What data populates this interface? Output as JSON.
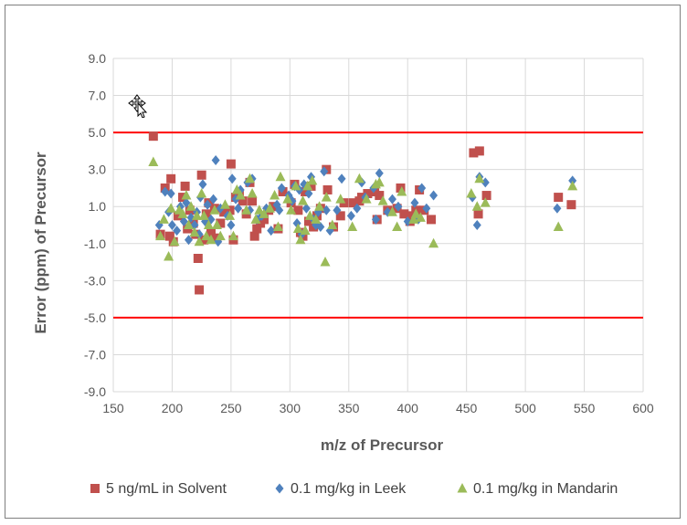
{
  "chart_data": {
    "type": "scatter",
    "xlabel": "m/z of Precursor",
    "ylabel": "Error (ppm) of Precursor",
    "xlim": [
      150,
      600
    ],
    "ylim": [
      -9,
      9
    ],
    "x_ticks": [
      "150",
      "200",
      "250",
      "300",
      "350",
      "400",
      "450",
      "500",
      "550",
      "600"
    ],
    "y_ticks": [
      "9.0",
      "7.0",
      "5.0",
      "3.0",
      "1.0",
      "-1.0",
      "-3.0",
      "-5.0",
      "-7.0",
      "-9.0"
    ],
    "grid": true,
    "legend_position": "bottom",
    "reference_lines": [
      {
        "y": 5.0,
        "color": "#ff0000"
      },
      {
        "y": -5.0,
        "color": "#ff0000"
      }
    ],
    "series": [
      {
        "name": "5 ng/mL in Solvent",
        "marker": "square",
        "color": "#c0504d",
        "points": [
          [
            184,
            4.8
          ],
          [
            190,
            -0.5
          ],
          [
            194,
            2.0
          ],
          [
            198,
            -0.6
          ],
          [
            199,
            2.5
          ],
          [
            201,
            -0.9
          ],
          [
            205,
            0.5
          ],
          [
            209,
            1.5
          ],
          [
            211,
            2.1
          ],
          [
            213,
            -0.2
          ],
          [
            215,
            0.8
          ],
          [
            218,
            0.1
          ],
          [
            220,
            -0.5
          ],
          [
            222,
            -1.8
          ],
          [
            223,
            -3.5
          ],
          [
            225,
            2.7
          ],
          [
            227,
            -0.8
          ],
          [
            229,
            0.6
          ],
          [
            231,
            1.2
          ],
          [
            233,
            -0.4
          ],
          [
            236,
            0.9
          ],
          [
            238,
            -0.7
          ],
          [
            241,
            0.1
          ],
          [
            244,
            0.7
          ],
          [
            249,
            0.8
          ],
          [
            250,
            3.3
          ],
          [
            252,
            -0.8
          ],
          [
            254,
            1.5
          ],
          [
            257,
            1.7
          ],
          [
            260,
            1.3
          ],
          [
            263,
            0.6
          ],
          [
            266,
            2.3
          ],
          [
            268,
            1.3
          ],
          [
            270,
            -0.6
          ],
          [
            272,
            -0.2
          ],
          [
            275,
            0.1
          ],
          [
            278,
            0.3
          ],
          [
            282,
            0.8
          ],
          [
            286,
            1.0
          ],
          [
            290,
            -0.2
          ],
          [
            294,
            1.8
          ],
          [
            301,
            1.2
          ],
          [
            304,
            2.2
          ],
          [
            307,
            0.8
          ],
          [
            309,
            -0.4
          ],
          [
            311,
            -0.6
          ],
          [
            313,
            1.8
          ],
          [
            316,
            0.2
          ],
          [
            318,
            2.1
          ],
          [
            320,
            -0.1
          ],
          [
            323,
            0.5
          ],
          [
            326,
            0.9
          ],
          [
            331,
            3.0
          ],
          [
            332,
            1.9
          ],
          [
            337,
            -0.1
          ],
          [
            343,
            0.5
          ],
          [
            346,
            1.2
          ],
          [
            354,
            1.2
          ],
          [
            359,
            1.3
          ],
          [
            361,
            1.5
          ],
          [
            366,
            1.7
          ],
          [
            372,
            1.8
          ],
          [
            374,
            0.3
          ],
          [
            376,
            1.6
          ],
          [
            383,
            0.8
          ],
          [
            391,
            0.9
          ],
          [
            394,
            2.0
          ],
          [
            397,
            0.6
          ],
          [
            402,
            0.2
          ],
          [
            404,
            0.5
          ],
          [
            407,
            0.8
          ],
          [
            410,
            1.9
          ],
          [
            414,
            0.8
          ],
          [
            420,
            0.3
          ],
          [
            456,
            3.9
          ],
          [
            460,
            0.6
          ],
          [
            461,
            4.0
          ],
          [
            467,
            1.6
          ],
          [
            528,
            1.5
          ],
          [
            539,
            1.1
          ]
        ]
      },
      {
        "name": "0.1 mg/kg in Leek",
        "marker": "diamond",
        "color": "#4f81bd",
        "points": [
          [
            189,
            0.0
          ],
          [
            194,
            1.8
          ],
          [
            197,
            0.7
          ],
          [
            199,
            1.7
          ],
          [
            200,
            0.0
          ],
          [
            204,
            -0.3
          ],
          [
            207,
            1.0
          ],
          [
            210,
            0.2
          ],
          [
            212,
            1.2
          ],
          [
            214,
            -0.8
          ],
          [
            216,
            0.4
          ],
          [
            219,
            0.0
          ],
          [
            221,
            0.7
          ],
          [
            223,
            -0.5
          ],
          [
            224,
            1.5
          ],
          [
            226,
            2.2
          ],
          [
            228,
            0.2
          ],
          [
            230,
            1.1
          ],
          [
            233,
            0.3
          ],
          [
            235,
            1.4
          ],
          [
            237,
            3.5
          ],
          [
            239,
            -0.9
          ],
          [
            241,
            0.9
          ],
          [
            247,
            0.5
          ],
          [
            250,
            0.0
          ],
          [
            251,
            2.5
          ],
          [
            254,
            1.4
          ],
          [
            256,
            0.9
          ],
          [
            258,
            1.9
          ],
          [
            264,
            2.3
          ],
          [
            266,
            0.8
          ],
          [
            268,
            2.5
          ],
          [
            272,
            0.3
          ],
          [
            276,
            0.5
          ],
          [
            280,
            0.9
          ],
          [
            284,
            -0.3
          ],
          [
            289,
            1.1
          ],
          [
            291,
            0.8
          ],
          [
            293,
            2.0
          ],
          [
            299,
            1.6
          ],
          [
            302,
            1.3
          ],
          [
            304,
            2.1
          ],
          [
            306,
            0.1
          ],
          [
            308,
            1.9
          ],
          [
            310,
            -0.5
          ],
          [
            312,
            2.2
          ],
          [
            314,
            0.9
          ],
          [
            316,
            1.7
          ],
          [
            318,
            2.6
          ],
          [
            320,
            0.3
          ],
          [
            322,
            0.0
          ],
          [
            324,
            0.7
          ],
          [
            326,
            -0.1
          ],
          [
            329,
            2.9
          ],
          [
            331,
            0.8
          ],
          [
            334,
            -0.3
          ],
          [
            340,
            0.8
          ],
          [
            344,
            2.5
          ],
          [
            352,
            0.5
          ],
          [
            357,
            0.9
          ],
          [
            361,
            2.3
          ],
          [
            364,
            1.5
          ],
          [
            371,
            2.0
          ],
          [
            373,
            0.3
          ],
          [
            376,
            2.8
          ],
          [
            383,
            0.7
          ],
          [
            387,
            1.4
          ],
          [
            392,
            1.0
          ],
          [
            400,
            0.2
          ],
          [
            406,
            1.2
          ],
          [
            409,
            0.3
          ],
          [
            412,
            2.0
          ],
          [
            416,
            0.9
          ],
          [
            422,
            1.6
          ],
          [
            455,
            1.5
          ],
          [
            459,
            0.0
          ],
          [
            461,
            2.6
          ],
          [
            466,
            2.3
          ],
          [
            527,
            0.9
          ],
          [
            540,
            2.4
          ]
        ]
      },
      {
        "name": "0.1 mg/kg in Mandarin",
        "marker": "triangle",
        "color": "#9bbb59",
        "points": [
          [
            184,
            3.4
          ],
          [
            190,
            -0.6
          ],
          [
            193,
            0.3
          ],
          [
            197,
            -1.7
          ],
          [
            199,
            0.9
          ],
          [
            202,
            -0.9
          ],
          [
            206,
            0.8
          ],
          [
            209,
            0.6
          ],
          [
            212,
            1.6
          ],
          [
            214,
            0.0
          ],
          [
            216,
            1.0
          ],
          [
            219,
            -0.4
          ],
          [
            221,
            0.5
          ],
          [
            223,
            -0.9
          ],
          [
            225,
            1.7
          ],
          [
            227,
            0.5
          ],
          [
            229,
            -0.6
          ],
          [
            231,
            0.0
          ],
          [
            233,
            -0.8
          ],
          [
            236,
            0.8
          ],
          [
            238,
            0.0
          ],
          [
            241,
            -0.6
          ],
          [
            245,
            1.1
          ],
          [
            249,
            0.5
          ],
          [
            252,
            -0.6
          ],
          [
            255,
            1.9
          ],
          [
            258,
            1.6
          ],
          [
            263,
            0.8
          ],
          [
            266,
            2.5
          ],
          [
            268,
            1.7
          ],
          [
            271,
            0.3
          ],
          [
            274,
            0.8
          ],
          [
            278,
            0.6
          ],
          [
            283,
            0.9
          ],
          [
            287,
            1.6
          ],
          [
            290,
            -0.1
          ],
          [
            292,
            2.6
          ],
          [
            298,
            1.4
          ],
          [
            301,
            0.8
          ],
          [
            305,
            2.1
          ],
          [
            307,
            -0.2
          ],
          [
            309,
            -0.8
          ],
          [
            311,
            1.3
          ],
          [
            313,
            -0.3
          ],
          [
            315,
            2.1
          ],
          [
            317,
            0.5
          ],
          [
            319,
            2.4
          ],
          [
            322,
            0.3
          ],
          [
            325,
            1.0
          ],
          [
            330,
            -2.0
          ],
          [
            331,
            1.5
          ],
          [
            336,
            0.0
          ],
          [
            343,
            1.4
          ],
          [
            353,
            -0.1
          ],
          [
            359,
            2.5
          ],
          [
            365,
            1.4
          ],
          [
            373,
            2.2
          ],
          [
            376,
            2.3
          ],
          [
            379,
            1.3
          ],
          [
            387,
            0.7
          ],
          [
            391,
            -0.1
          ],
          [
            395,
            1.8
          ],
          [
            405,
            0.3
          ],
          [
            407,
            0.6
          ],
          [
            411,
            0.4
          ],
          [
            422,
            -1.0
          ],
          [
            454,
            1.7
          ],
          [
            459,
            1.0
          ],
          [
            461,
            2.5
          ],
          [
            466,
            1.2
          ],
          [
            528,
            -0.1
          ],
          [
            540,
            2.1
          ]
        ]
      }
    ]
  }
}
